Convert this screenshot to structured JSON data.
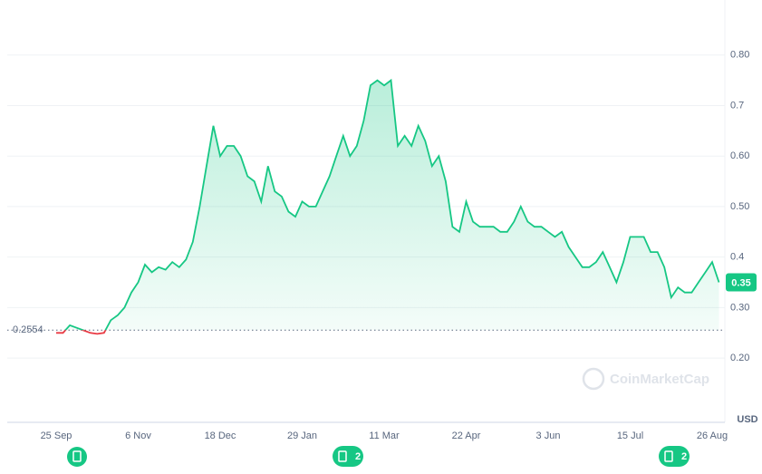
{
  "chart_data": {
    "type": "line",
    "categories": [
      "25 Sep",
      null,
      null,
      null,
      null,
      null,
      null,
      null,
      null,
      null,
      null,
      null,
      "6 Nov",
      null,
      null,
      null,
      null,
      null,
      null,
      null,
      null,
      null,
      null,
      null,
      "18 Dec",
      null,
      null,
      null,
      null,
      null,
      null,
      null,
      null,
      null,
      null,
      null,
      "29 Jan",
      null,
      null,
      null,
      null,
      null,
      null,
      null,
      null,
      null,
      null,
      null,
      "11 Mar",
      null,
      null,
      null,
      null,
      null,
      null,
      null,
      null,
      null,
      null,
      null,
      "22 Apr",
      null,
      null,
      null,
      null,
      null,
      null,
      null,
      null,
      null,
      null,
      null,
      "3 Jun",
      null,
      null,
      null,
      null,
      null,
      null,
      null,
      null,
      null,
      null,
      null,
      "15 Jul",
      null,
      null,
      null,
      null,
      null,
      null,
      null,
      null,
      null,
      null,
      null,
      "26 Aug",
      null
    ],
    "series": [
      {
        "color": "#16c784",
        "values": [
          0.25,
          0.25,
          0.265,
          0.26,
          0.255,
          0.25,
          0.248,
          0.25,
          0.275,
          0.285,
          0.3,
          0.33,
          0.35,
          0.385,
          0.37,
          0.38,
          0.375,
          0.39,
          0.38,
          0.395,
          0.43,
          0.5,
          0.58,
          0.66,
          0.6,
          0.62,
          0.62,
          0.6,
          0.56,
          0.55,
          0.51,
          0.58,
          0.53,
          0.52,
          0.49,
          0.48,
          0.51,
          0.5,
          0.5,
          0.53,
          0.56,
          0.6,
          0.64,
          0.6,
          0.62,
          0.67,
          0.74,
          0.75,
          0.74,
          0.75,
          0.62,
          0.64,
          0.62,
          0.66,
          0.63,
          0.58,
          0.6,
          0.55,
          0.46,
          0.45,
          0.51,
          0.47,
          0.46,
          0.46,
          0.46,
          0.45,
          0.45,
          0.47,
          0.5,
          0.47,
          0.46,
          0.46,
          0.45,
          0.44,
          0.45,
          0.42,
          0.4,
          0.38,
          0.38,
          0.39,
          0.41,
          0.38,
          0.35,
          0.39,
          0.44,
          0.44,
          0.44,
          0.41,
          0.41,
          0.38,
          0.32,
          0.34,
          0.33,
          0.33,
          0.35,
          0.37,
          0.39,
          0.35
        ]
      }
    ],
    "below_color": "#ea3943",
    "baseline": 0.2554,
    "current": 0.35,
    "ylim": [
      0.08,
      0.9
    ],
    "yticks": [
      {
        "value": 0.2,
        "label": "0.20"
      },
      {
        "value": 0.3,
        "label": "0.30"
      },
      0.4,
      {
        "value": 0.5,
        "label": "0.50"
      },
      {
        "value": 0.6,
        "label": "0.60"
      },
      0.7,
      {
        "value": 0.8,
        "label": "0.80"
      }
    ],
    "grid": true,
    "currency": "USD",
    "watermark": "CoinMarketCap",
    "event_badges": [
      "2",
      "2"
    ]
  }
}
